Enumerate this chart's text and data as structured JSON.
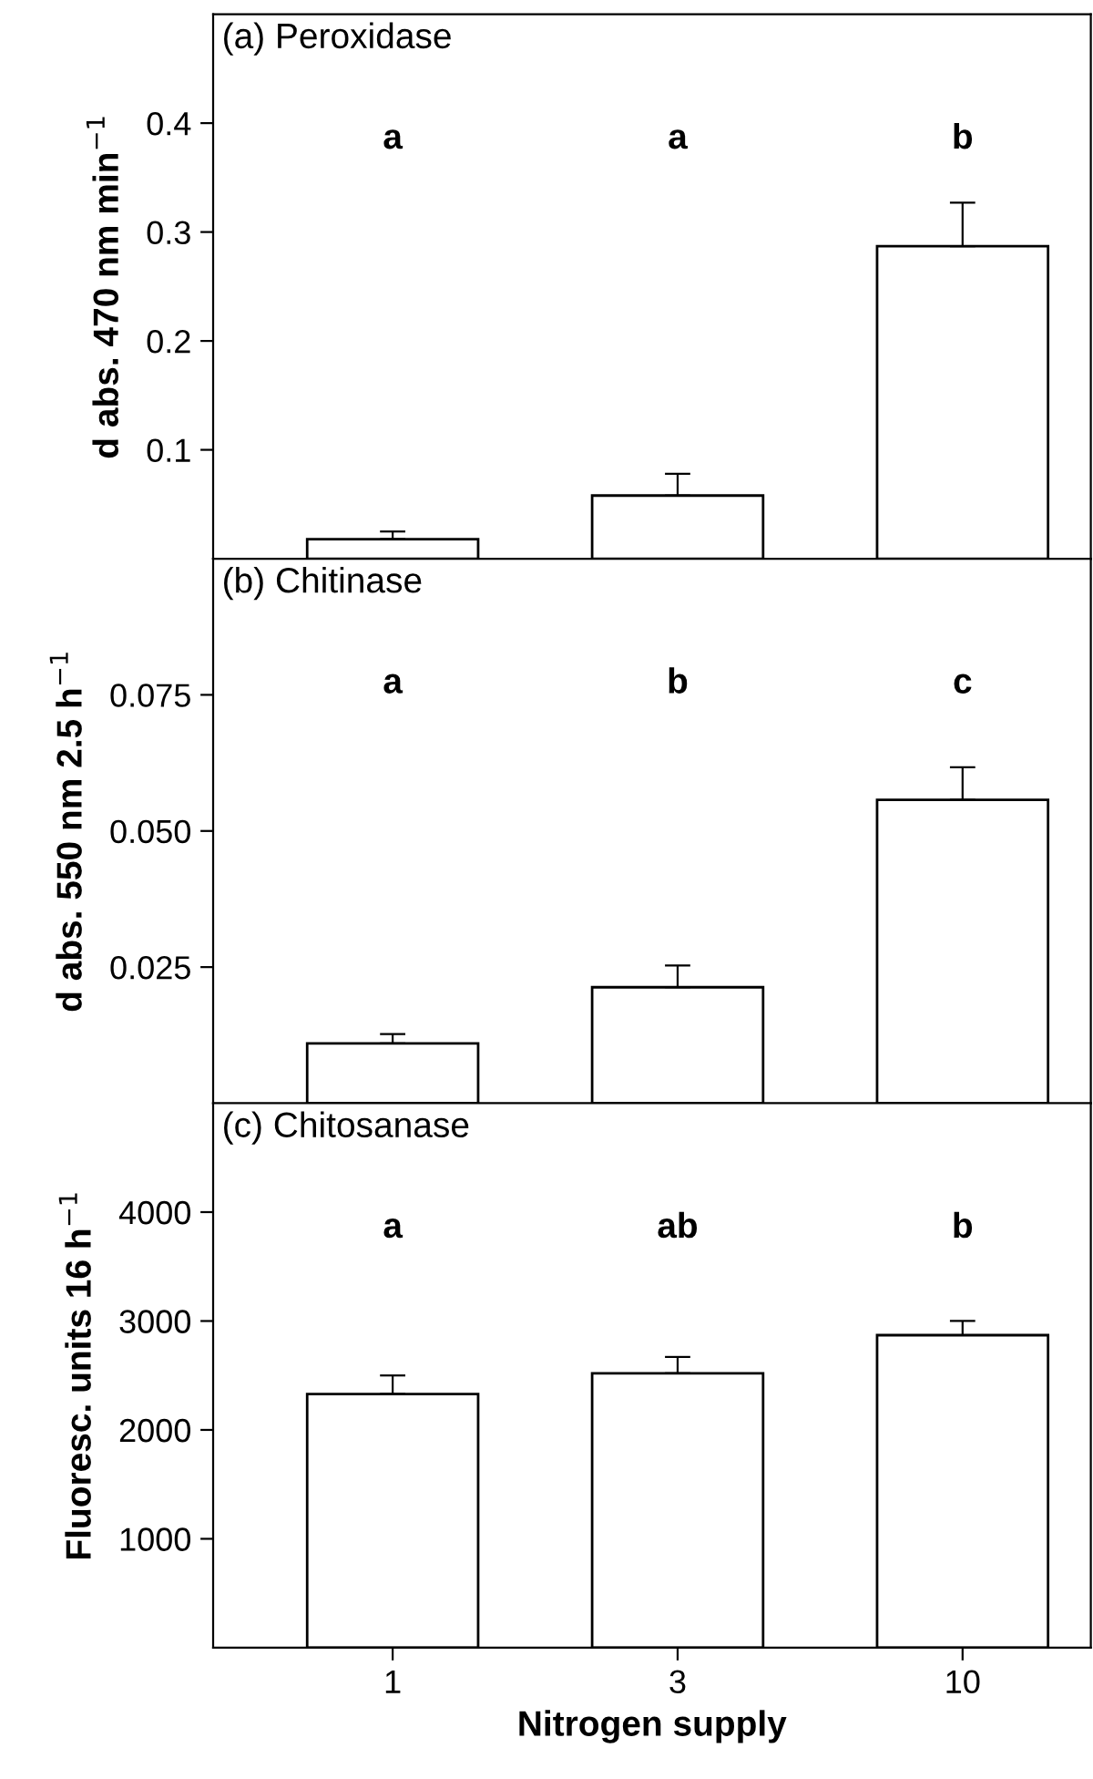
{
  "chart_data": [
    {
      "type": "bar",
      "title": "(a) Peroxidase",
      "ylabel": "d abs. 470 nm min$^{−1}$",
      "categories": [
        "1",
        "3",
        "10"
      ],
      "color": "#ffffff",
      "values": [
        0.018,
        0.058,
        0.287
      ],
      "errors": [
        0.007,
        0.02,
        0.04
      ],
      "ylim": [
        0,
        0.5
      ],
      "yticks": [
        0.1,
        0.2,
        0.3,
        0.4
      ],
      "tick_labels": "y",
      "annotations": [
        "a",
        "a",
        "b"
      ]
    },
    {
      "type": "bar",
      "title": "(b) Chitinase",
      "ylabel": "d abs. 550 nm 2.5 h$^{−1}$",
      "categories": [
        "1",
        "3",
        "10"
      ],
      "color": "#ffffff",
      "values": [
        0.011,
        0.0213,
        0.0557
      ],
      "errors": [
        0.0017,
        0.004,
        0.006
      ],
      "ylim": [
        0,
        0.1
      ],
      "yticks": [
        0.025,
        {
          "value": 0.05,
          "label": "0.050"
        },
        0.075
      ],
      "tick_labels": "y",
      "annotations": [
        "a",
        "b",
        "c"
      ]
    },
    {
      "type": "bar",
      "title": "(c) Chitosanase",
      "ylabel": "Fluoresc. units 16 h$^{−1}$",
      "xlabel": "Nitrogen supply",
      "categories": [
        "1",
        "3",
        "10"
      ],
      "color": "#ffffff",
      "values": [
        2330,
        2520,
        2870
      ],
      "errors": [
        170,
        150,
        130
      ],
      "ylim": [
        0,
        5000
      ],
      "yticks": [
        1000,
        2000,
        3000,
        4000
      ],
      "annotations": [
        "a",
        "ab",
        "b"
      ]
    }
  ]
}
